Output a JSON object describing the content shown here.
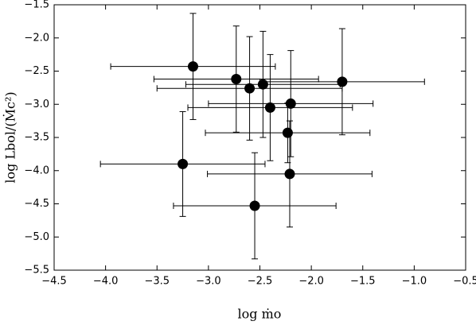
{
  "chart_data": {
    "type": "scatter",
    "x_label": "log ṁo",
    "y_label": "log Lbol/(Ṁc²)",
    "color": "#000000",
    "xlim": [
      -4.5,
      -0.5
    ],
    "ylim": [
      -5.5,
      -1.5
    ],
    "xticks": [
      {
        "value": -4.5,
        "label": "−4.5"
      },
      {
        "value": -4.0,
        "label": "−4.0"
      },
      {
        "value": -3.5,
        "label": "−3.5"
      },
      {
        "value": -3.0,
        "label": "−3.0"
      },
      {
        "value": -2.5,
        "label": "−2.5"
      },
      {
        "value": -2.0,
        "label": "−2.0"
      },
      {
        "value": -1.5,
        "label": "−1.5"
      },
      {
        "value": -1.0,
        "label": "−1.0"
      },
      {
        "value": -0.5,
        "label": "−0.5"
      }
    ],
    "yticks": [
      {
        "value": -1.5,
        "label": "−1.5"
      },
      {
        "value": -2.0,
        "label": "−2.0"
      },
      {
        "value": -2.5,
        "label": "−2.5"
      },
      {
        "value": -3.0,
        "label": "−3.0"
      },
      {
        "value": -3.5,
        "label": "−3.5"
      },
      {
        "value": -4.0,
        "label": "−4.0"
      },
      {
        "value": -4.5,
        "label": "−4.5"
      },
      {
        "value": -5.0,
        "label": "−5.0"
      },
      {
        "value": -5.5,
        "label": "−5.5"
      }
    ],
    "x": [
      -3.15,
      -2.73,
      -2.6,
      -2.47,
      -2.4,
      -2.2,
      -1.7,
      -2.23,
      -3.25,
      -2.21,
      -2.55
    ],
    "values": [
      -2.43,
      -2.62,
      -2.76,
      -2.7,
      -3.05,
      -2.99,
      -2.66,
      -3.43,
      -3.9,
      -4.05,
      -4.53
    ],
    "xerr": [
      0.8,
      0.8,
      0.9,
      0.75,
      0.8,
      0.8,
      0.8,
      0.8,
      0.8,
      0.8,
      0.79
    ],
    "yerr": [
      0.8,
      0.8,
      0.78,
      0.8,
      0.8,
      0.8,
      0.8,
      0.45,
      0.79,
      0.8,
      0.8
    ]
  }
}
